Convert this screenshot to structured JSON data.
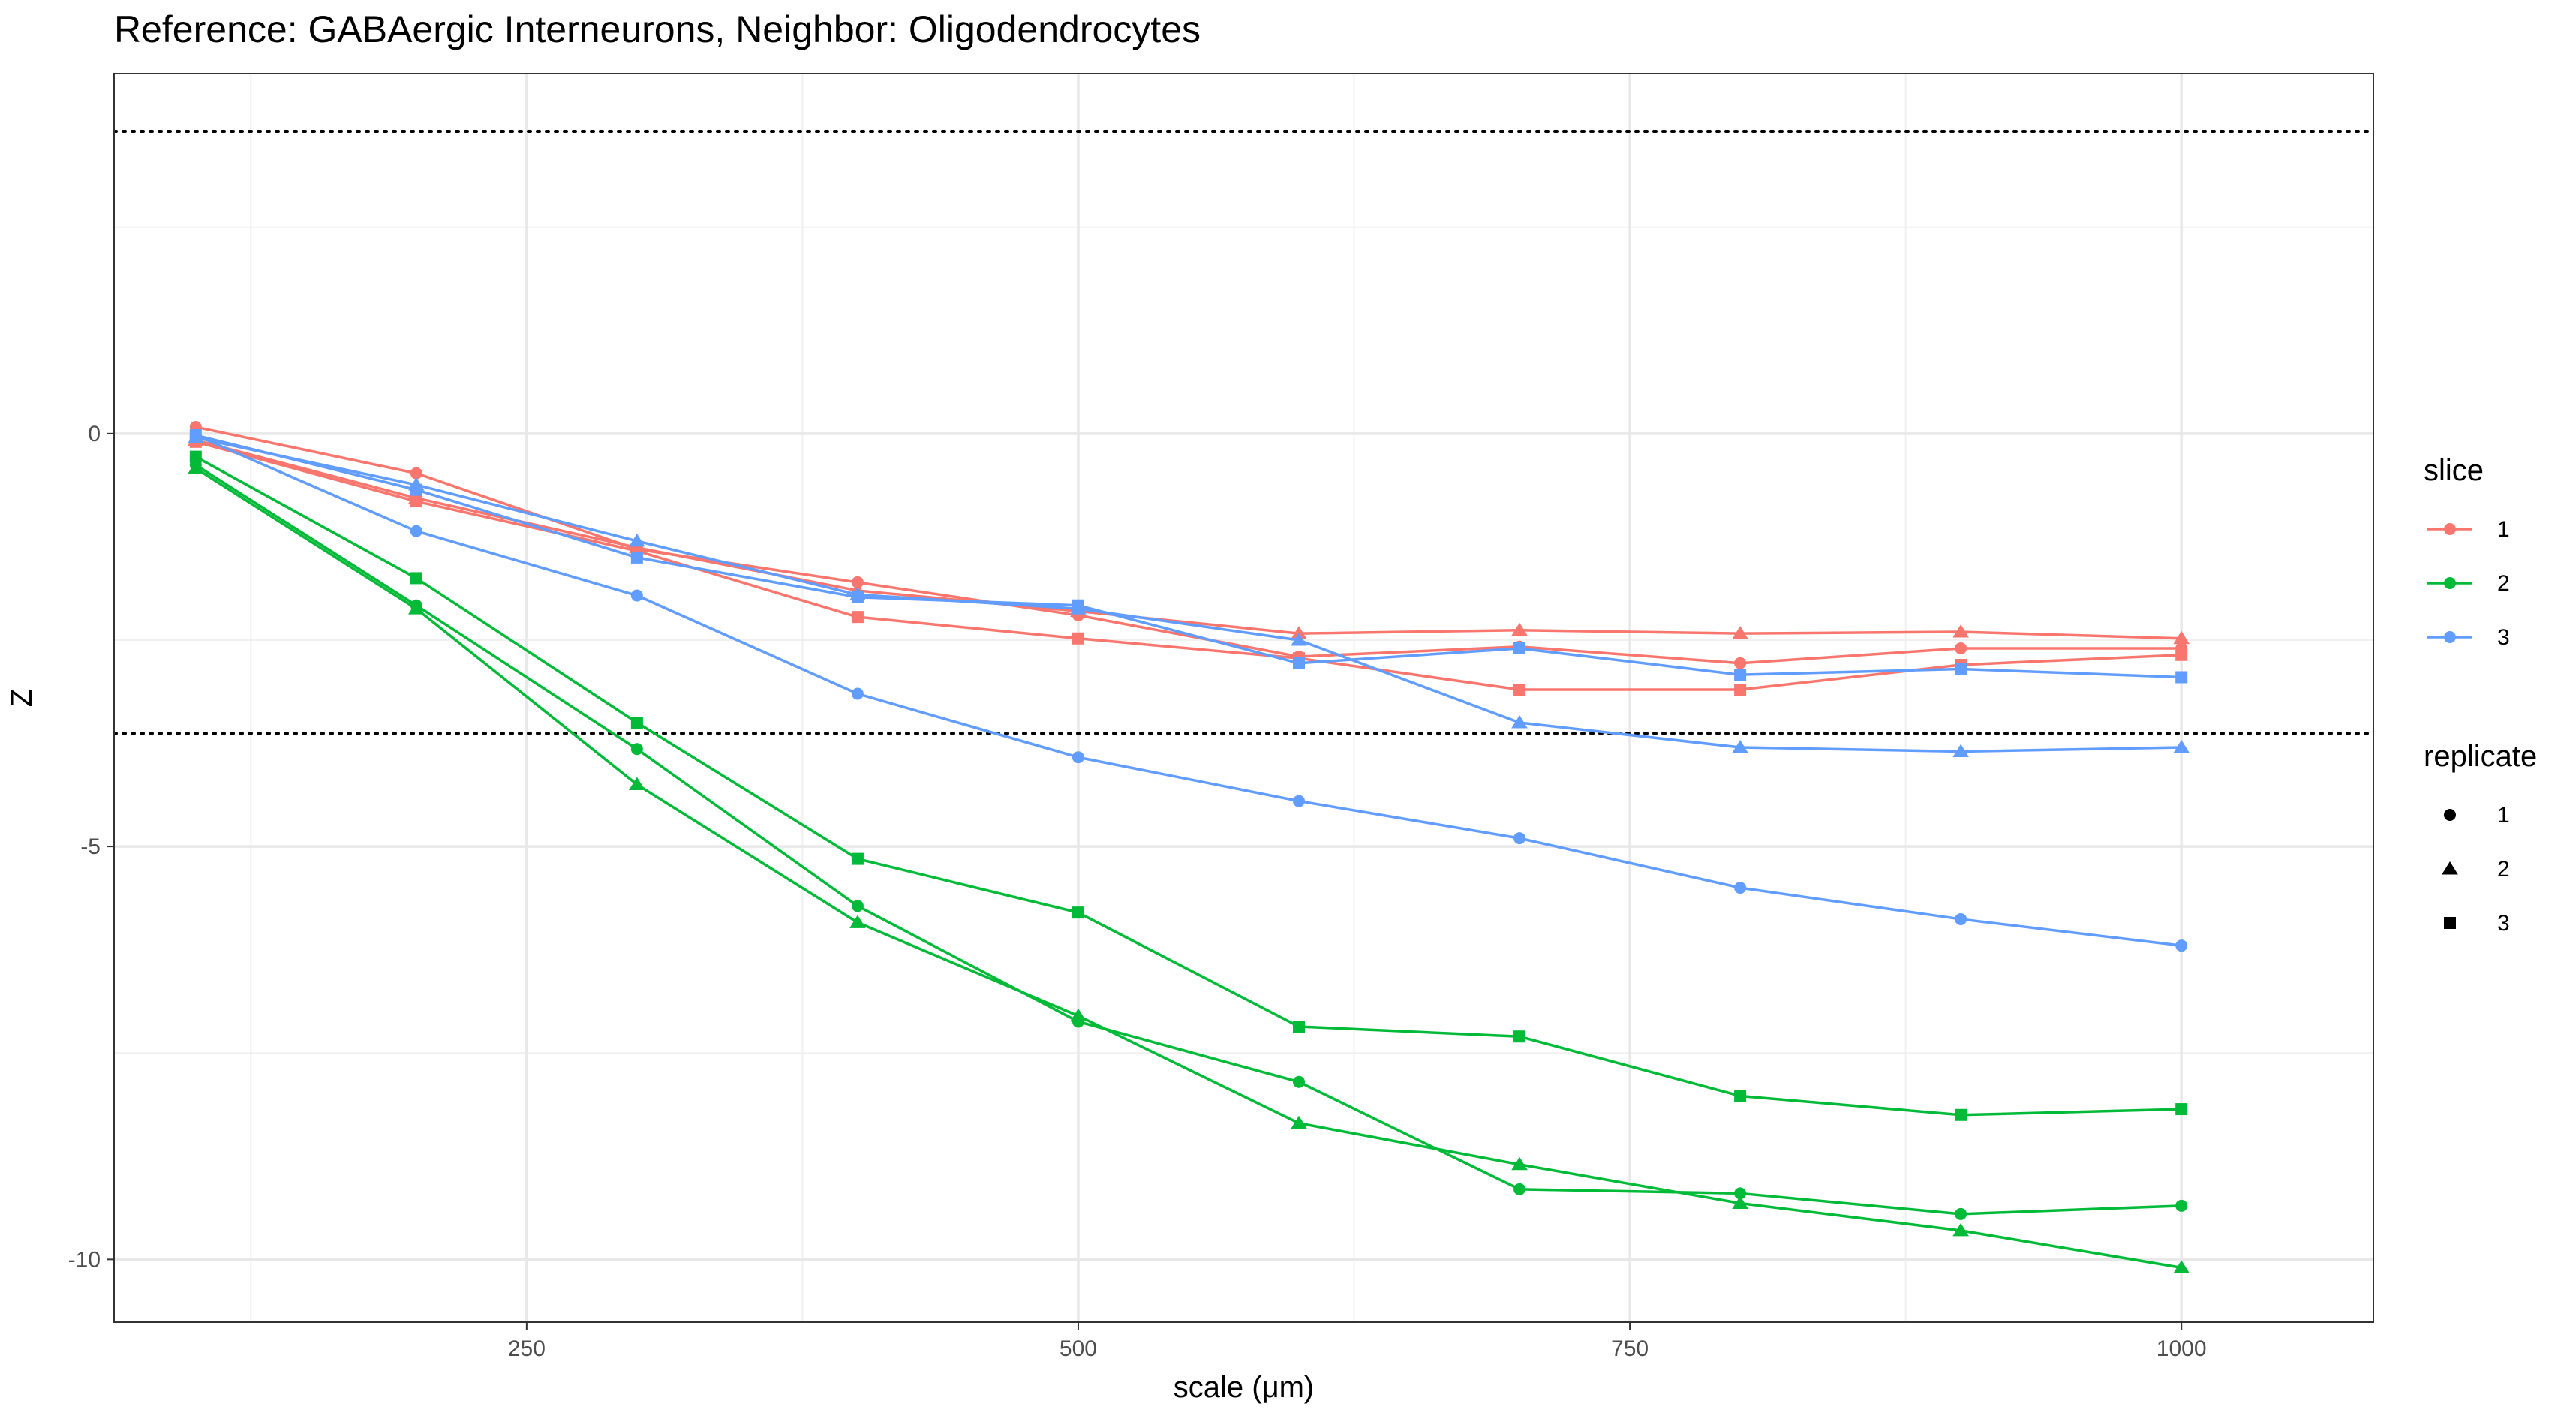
{
  "chart_data": {
    "type": "line",
    "title": "Reference: GABAergic Interneurons, Neighbor: Oligodendrocytes",
    "xlabel": "scale (μm)",
    "ylabel": "Z",
    "xlim": [
      63,
      1087
    ],
    "ylim": [
      -10.76,
      4.36
    ],
    "x_ticks": [
      250,
      500,
      750,
      1000
    ],
    "x_minor_ticks": [
      125,
      375,
      625,
      875
    ],
    "y_ticks": [
      0,
      -5,
      -10
    ],
    "y_minor_ticks": [
      2.5,
      -2.5,
      -7.5
    ],
    "reference_lines": [
      3.66,
      -3.63
    ],
    "grid": true,
    "x": [
      100,
      200,
      300,
      400,
      500,
      600,
      700,
      800,
      900,
      1000
    ],
    "slice_colors": {
      "1": "#F8766D",
      "2": "#00BA38",
      "3": "#619CFF"
    },
    "series": [
      {
        "slice": "1",
        "replicate": "1",
        "values": [
          0.08,
          -0.48,
          -1.4,
          -1.8,
          -2.2,
          -2.7,
          -2.58,
          -2.78,
          -2.6,
          -2.6
        ]
      },
      {
        "slice": "1",
        "replicate": "2",
        "values": [
          -0.08,
          -0.78,
          -1.38,
          -1.9,
          -2.15,
          -2.42,
          -2.38,
          -2.42,
          -2.4,
          -2.48
        ]
      },
      {
        "slice": "1",
        "replicate": "3",
        "values": [
          -0.1,
          -0.82,
          -1.42,
          -2.22,
          -2.48,
          -2.72,
          -3.1,
          -3.1,
          -2.8,
          -2.68
        ]
      },
      {
        "slice": "2",
        "replicate": "1",
        "values": [
          -0.38,
          -2.08,
          -3.82,
          -5.72,
          -7.12,
          -7.85,
          -9.15,
          -9.2,
          -9.45,
          -9.35
        ]
      },
      {
        "slice": "2",
        "replicate": "2",
        "values": [
          -0.42,
          -2.12,
          -4.25,
          -5.92,
          -7.05,
          -8.35,
          -8.85,
          -9.32,
          -9.65,
          -10.1
        ]
      },
      {
        "slice": "2",
        "replicate": "3",
        "values": [
          -0.28,
          -1.75,
          -3.5,
          -5.15,
          -5.8,
          -7.18,
          -7.3,
          -8.02,
          -8.25,
          -8.18
        ]
      },
      {
        "slice": "3",
        "replicate": "1",
        "values": [
          -0.02,
          -1.18,
          -1.96,
          -3.15,
          -3.92,
          -4.45,
          -4.9,
          -5.5,
          -5.88,
          -6.2
        ]
      },
      {
        "slice": "3",
        "replicate": "2",
        "values": [
          -0.05,
          -0.62,
          -1.3,
          -1.95,
          -2.12,
          -2.5,
          -3.5,
          -3.8,
          -3.85,
          -3.8
        ]
      },
      {
        "slice": "3",
        "replicate": "3",
        "values": [
          -0.02,
          -0.68,
          -1.5,
          -1.98,
          -2.08,
          -2.78,
          -2.6,
          -2.92,
          -2.85,
          -2.95
        ]
      }
    ],
    "legends": [
      {
        "title": "slice",
        "entries": [
          {
            "label": "1",
            "color": "#F8766D"
          },
          {
            "label": "2",
            "color": "#00BA38"
          },
          {
            "label": "3",
            "color": "#619CFF"
          }
        ]
      },
      {
        "title": "replicate",
        "entries": [
          {
            "label": "1",
            "shape": "circle"
          },
          {
            "label": "2",
            "shape": "triangle"
          },
          {
            "label": "3",
            "shape": "square"
          }
        ]
      }
    ],
    "legend_position": "right"
  }
}
